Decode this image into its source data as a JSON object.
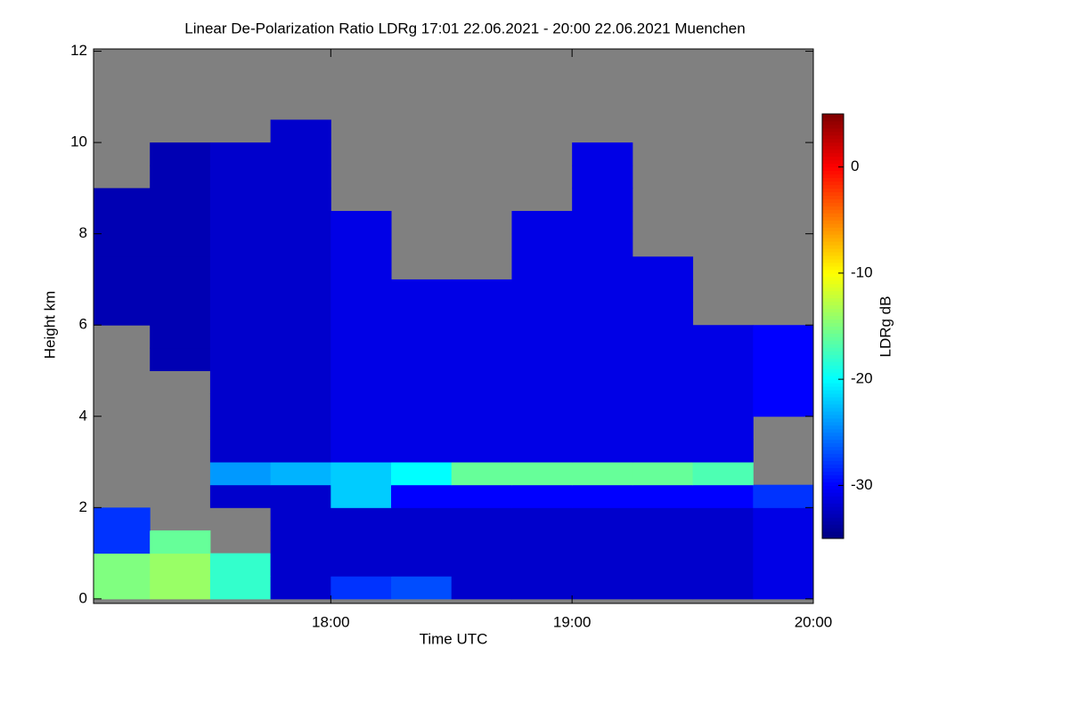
{
  "chart_data": {
    "type": "heatmap",
    "title": "Linear De-Polarization Ratio LDRg   17:01 22.06.2021 - 20:00 22.06.2021 Muenchen",
    "x_label": "Time UTC",
    "y_label": "Height km",
    "colorbar_label": "LDRg dB",
    "colormap": "jet",
    "nodata_color": "#808080",
    "xlim": [
      17.0167,
      20.0
    ],
    "xticks": [
      {
        "value": 18,
        "label": "18:00"
      },
      {
        "value": 19,
        "label": "19:00"
      },
      {
        "value": 20,
        "label": "20:00"
      }
    ],
    "ylim": [
      -0.1,
      12.05
    ],
    "yticks": [
      0,
      2,
      4,
      6,
      8,
      10,
      12
    ],
    "clim": [
      -35,
      5
    ],
    "cticks": [
      0,
      -10,
      -20,
      -30
    ],
    "x_edges": [
      17.0167,
      17.25,
      17.5,
      17.75,
      18,
      18.25,
      18.5,
      18.75,
      19,
      19.25,
      19.5,
      19.75,
      20.0
    ],
    "y_edges": [
      0,
      0.5,
      1,
      1.5,
      2,
      2.5,
      3,
      3.5,
      4,
      4.5,
      5,
      5.5,
      6,
      6.5,
      7,
      7.5,
      8,
      8.5,
      9,
      9.5,
      10,
      10.5,
      11
    ],
    "z": [
      [
        -15,
        -14,
        -18,
        -32,
        -28,
        -27,
        -32,
        -32,
        -32,
        -32,
        -32,
        -31
      ],
      [
        -15,
        -14,
        -18,
        -32,
        -32,
        -32,
        -32,
        -32,
        -32,
        -32,
        -32,
        -31
      ],
      [
        -28,
        -16,
        null,
        -32,
        -32,
        -32,
        -32,
        -32,
        -32,
        -32,
        -32,
        -31
      ],
      [
        -28,
        null,
        null,
        -32,
        -32,
        -32,
        -32,
        -32,
        -32,
        -32,
        -32,
        -31
      ],
      [
        null,
        null,
        -32,
        -32,
        -22,
        -30,
        -30,
        -30,
        -30,
        -30,
        -30,
        -28
      ],
      [
        null,
        null,
        -24,
        -23,
        -22,
        -20,
        -16,
        -16,
        -16,
        -16,
        -17,
        null
      ],
      [
        null,
        null,
        -32,
        -32,
        -31,
        -31,
        -31,
        -31,
        -31,
        -31,
        -31,
        null
      ],
      [
        null,
        null,
        -32,
        -32,
        -31,
        -31,
        -31,
        -31,
        -31,
        -31,
        -31,
        null
      ],
      [
        null,
        null,
        -32,
        -32,
        -31,
        -31,
        -31,
        -31,
        -31,
        -31,
        -31,
        -30
      ],
      [
        null,
        null,
        -32,
        -32,
        -31,
        -31,
        -31,
        -31,
        -31,
        -31,
        -31,
        -30
      ],
      [
        null,
        -33,
        -32,
        -32,
        -31,
        -31,
        -31,
        -31,
        -31,
        -31,
        -31,
        -30
      ],
      [
        null,
        -33,
        -32,
        -32,
        -31,
        -31,
        -31,
        -31,
        -31,
        -31,
        -31,
        -30
      ],
      [
        -33,
        -33,
        -32,
        -32,
        -31,
        -31,
        -31,
        -31,
        -31,
        -31,
        null,
        null
      ],
      [
        -33,
        -33,
        -32,
        -32,
        -31,
        -31,
        -31,
        -31,
        -31,
        -31,
        null,
        null
      ],
      [
        -33,
        -33,
        -32,
        -32,
        -31,
        null,
        null,
        -31,
        -31,
        -31,
        null,
        null
      ],
      [
        -33,
        -33,
        -32,
        -32,
        -31,
        null,
        null,
        -31,
        -31,
        null,
        null,
        null
      ],
      [
        -33,
        -33,
        -32,
        -32,
        -31,
        null,
        null,
        -31,
        -31,
        null,
        null,
        null
      ],
      [
        -33,
        -33,
        -32,
        -32,
        null,
        null,
        null,
        null,
        -31,
        null,
        null,
        null
      ],
      [
        null,
        -33,
        -32,
        -32,
        null,
        null,
        null,
        null,
        -31,
        null,
        null,
        null
      ],
      [
        null,
        -33,
        -32,
        -32,
        null,
        null,
        null,
        null,
        -31,
        null,
        null,
        null
      ],
      [
        null,
        null,
        null,
        -32,
        null,
        null,
        null,
        null,
        null,
        null,
        null,
        null
      ],
      [
        null,
        null,
        null,
        null,
        null,
        null,
        null,
        null,
        null,
        null,
        null,
        null
      ]
    ]
  }
}
